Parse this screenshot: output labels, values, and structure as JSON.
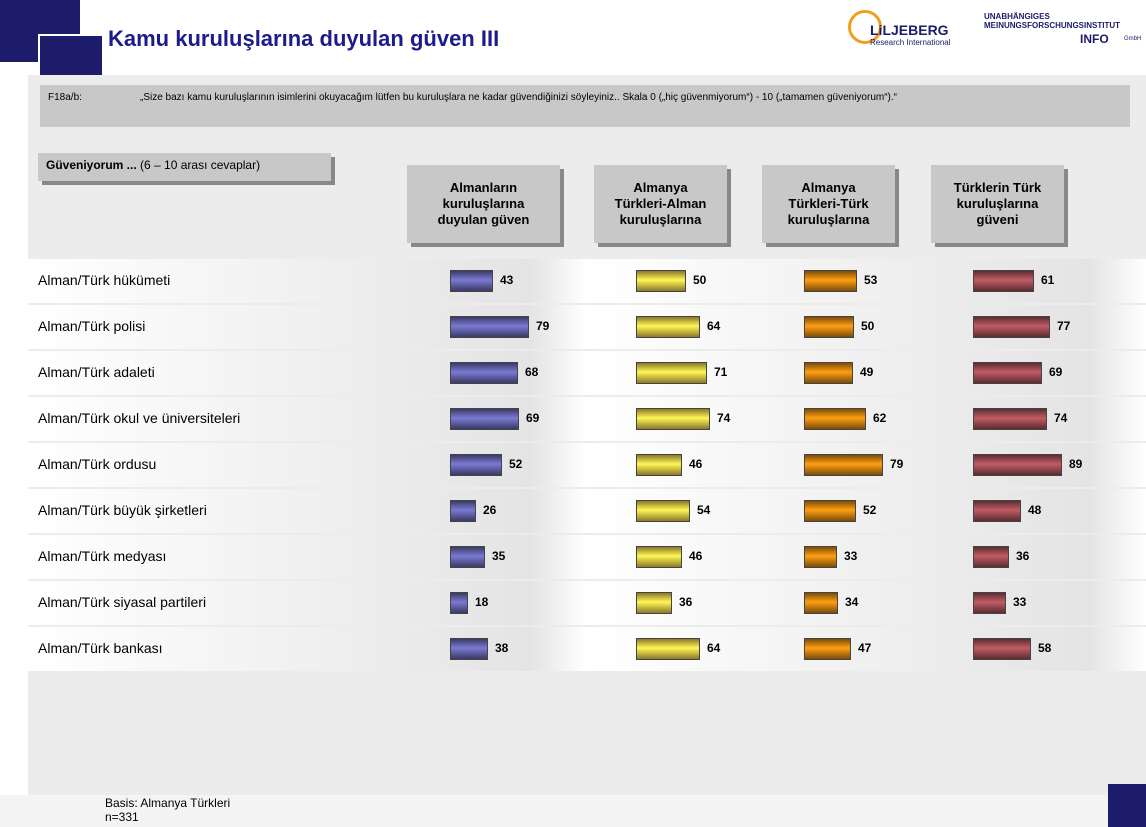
{
  "header": {
    "title": "Kamu kuruluşlarına duyulan güven III",
    "logo1": "LiLJEBERG",
    "logo1_sub": "Research International",
    "logo2_line1": "UNABHÄNGIGES",
    "logo2_line2": "MEINUNGSFORSCHUNGSINSTITUT",
    "logo2_brand": "INFO",
    "logo2_suffix": "GmbH"
  },
  "question": {
    "id": "F18a/b:",
    "text": "„Size bazı kamu kuruluşlarının isimlerini okuyacağım lütfen bu kuruluşlara ne kadar güvendiğinizi söyleyiniz.. Skala 0 („hiç güvenmiyorum“) - 10 („tamamen güveniyorum“).“"
  },
  "subset": {
    "label": "Güveniyorum ...",
    "note": "(6 – 10 arası cevaplar)"
  },
  "chart_data": {
    "type": "bar",
    "categories": [
      "Alman/Türk hükümeti",
      "Alman/Türk polisi",
      "Alman/Türk adaleti",
      "Alman/Türk okul ve üniversiteleri",
      "Alman/Türk ordusu",
      "Alman/Türk büyük şirketleri",
      "Alman/Türk medyası",
      "Alman/Türk siyasal partileri",
      "Alman/Türk bankası"
    ],
    "series": [
      {
        "name": "Almanların\nkuruluşlarına\nduyulan güven",
        "color": "#6a6ab8",
        "values": [
          43,
          79,
          68,
          69,
          52,
          26,
          35,
          18,
          38
        ]
      },
      {
        "name": "Almanya\nTürkleri-Alman\nkuruluşlarına",
        "color": "#ffd84a",
        "values": [
          50,
          64,
          71,
          74,
          46,
          54,
          46,
          36,
          64
        ]
      },
      {
        "name": "Almanya\nTürkleri-Türk\nkuruluşlarına",
        "color": "#e08a10",
        "values": [
          53,
          50,
          49,
          62,
          79,
          52,
          33,
          34,
          47
        ]
      },
      {
        "name": "Türklerin Türk\nkuruluşlarına\ngüveni",
        "color": "#a85058",
        "values": [
          61,
          77,
          69,
          74,
          89,
          48,
          36,
          33,
          58
        ]
      }
    ]
  },
  "footer": {
    "basis": "Basis: Almanya Türkleri",
    "n": "n=331"
  }
}
